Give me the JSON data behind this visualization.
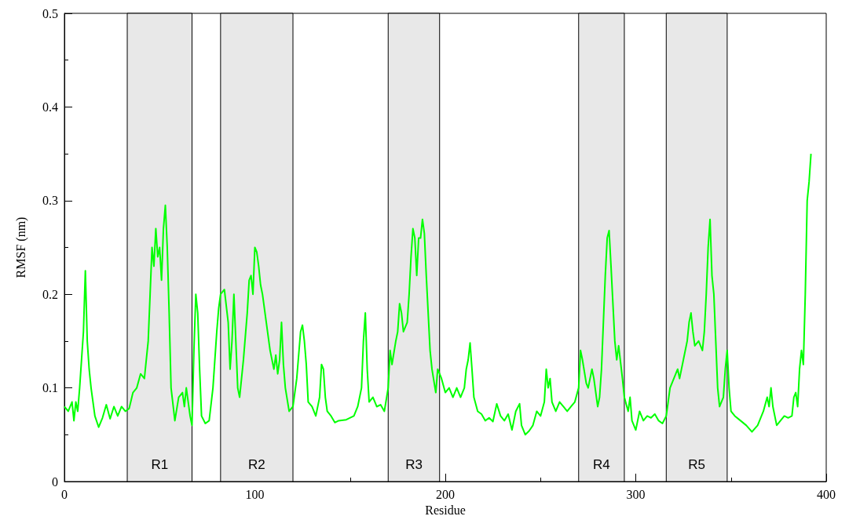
{
  "chart_data": {
    "type": "line",
    "xlabel": "Residue",
    "ylabel": "RMSF (nm)",
    "xlim": [
      0,
      400
    ],
    "xticks": [
      0,
      100,
      200,
      300,
      400
    ],
    "ylim": [
      0,
      0.5
    ],
    "yticks": [
      0,
      0.1,
      0.2,
      0.3,
      0.4,
      0.5
    ],
    "marker": "none",
    "line_style": "solid",
    "bands": [
      {
        "axis": "x",
        "from": 33,
        "to": 67,
        "label": "R1",
        "color": "#e8e8e8"
      },
      {
        "axis": "x",
        "from": 82,
        "to": 120,
        "label": "R2",
        "color": "#e8e8e8"
      },
      {
        "axis": "x",
        "from": 170,
        "to": 197,
        "label": "R3",
        "color": "#e8e8e8"
      },
      {
        "axis": "x",
        "from": 270,
        "to": 294,
        "label": "R4",
        "color": "#e8e8e8"
      },
      {
        "axis": "x",
        "from": 316,
        "to": 348,
        "label": "R5",
        "color": "#e8e8e8"
      }
    ],
    "series": [
      {
        "color": "#00ff00",
        "x": [
          0,
          2,
          4,
          5,
          6,
          7,
          8,
          9,
          10,
          11,
          12,
          13,
          14,
          16,
          18,
          20,
          22,
          24,
          26,
          28,
          30,
          32,
          34,
          36,
          38,
          40,
          42,
          44,
          45,
          46,
          47,
          48,
          49,
          50,
          51,
          52,
          53,
          54,
          55,
          56,
          58,
          60,
          62,
          63,
          64,
          65,
          66,
          67,
          68,
          69,
          70,
          71,
          72,
          74,
          76,
          78,
          80,
          81,
          82,
          84,
          86,
          87,
          88,
          89,
          90,
          91,
          92,
          94,
          96,
          97,
          98,
          99,
          100,
          101,
          102,
          103,
          104,
          106,
          108,
          110,
          111,
          112,
          113,
          114,
          115,
          116,
          118,
          120,
          122,
          124,
          125,
          126,
          127,
          128,
          130,
          132,
          134,
          135,
          136,
          137,
          138,
          140,
          142,
          144,
          148,
          152,
          154,
          156,
          157,
          158,
          159,
          160,
          162,
          164,
          166,
          168,
          170,
          171,
          172,
          174,
          175,
          176,
          177,
          178,
          180,
          181,
          182,
          183,
          184,
          185,
          186,
          187,
          188,
          189,
          190,
          191,
          192,
          193,
          195,
          196,
          198,
          200,
          202,
          204,
          206,
          208,
          210,
          211,
          212,
          213,
          214,
          215,
          217,
          219,
          221,
          223,
          225,
          227,
          229,
          231,
          233,
          235,
          237,
          239,
          240,
          242,
          244,
          246,
          248,
          250,
          252,
          253,
          254,
          255,
          256,
          258,
          260,
          262,
          264,
          266,
          268,
          270,
          271,
          272,
          274,
          275,
          277,
          278,
          280,
          281,
          282,
          283,
          284,
          285,
          286,
          287,
          288,
          289,
          290,
          291,
          293,
          294,
          296,
          297,
          298,
          300,
          302,
          304,
          306,
          308,
          310,
          312,
          314,
          316,
          317,
          318,
          320,
          322,
          323,
          325,
          327,
          328,
          329,
          330,
          331,
          333,
          335,
          336,
          337,
          338,
          339,
          340,
          341,
          342,
          343,
          344,
          346,
          347,
          348,
          349,
          350,
          352,
          355,
          358,
          361,
          364,
          367,
          369,
          370,
          371,
          372,
          374,
          376,
          378,
          380,
          382,
          383,
          384,
          385,
          386,
          387,
          388,
          389,
          390,
          391,
          392
        ],
        "values": [
          0.08,
          0.075,
          0.085,
          0.065,
          0.085,
          0.075,
          0.1,
          0.13,
          0.16,
          0.225,
          0.15,
          0.12,
          0.1,
          0.07,
          0.058,
          0.068,
          0.082,
          0.067,
          0.08,
          0.07,
          0.08,
          0.075,
          0.078,
          0.095,
          0.1,
          0.115,
          0.11,
          0.15,
          0.2,
          0.25,
          0.23,
          0.27,
          0.24,
          0.25,
          0.215,
          0.27,
          0.295,
          0.25,
          0.18,
          0.1,
          0.065,
          0.09,
          0.095,
          0.08,
          0.1,
          0.085,
          0.07,
          0.06,
          0.14,
          0.2,
          0.18,
          0.12,
          0.07,
          0.062,
          0.065,
          0.1,
          0.16,
          0.185,
          0.2,
          0.205,
          0.17,
          0.12,
          0.15,
          0.2,
          0.15,
          0.1,
          0.09,
          0.13,
          0.18,
          0.215,
          0.22,
          0.2,
          0.25,
          0.245,
          0.23,
          0.21,
          0.2,
          0.17,
          0.14,
          0.12,
          0.135,
          0.115,
          0.13,
          0.17,
          0.125,
          0.1,
          0.075,
          0.08,
          0.11,
          0.16,
          0.167,
          0.15,
          0.125,
          0.085,
          0.08,
          0.07,
          0.09,
          0.125,
          0.12,
          0.09,
          0.075,
          0.07,
          0.063,
          0.065,
          0.066,
          0.07,
          0.08,
          0.1,
          0.15,
          0.18,
          0.12,
          0.085,
          0.09,
          0.08,
          0.082,
          0.075,
          0.1,
          0.14,
          0.125,
          0.15,
          0.16,
          0.19,
          0.18,
          0.16,
          0.17,
          0.2,
          0.24,
          0.27,
          0.26,
          0.22,
          0.26,
          0.26,
          0.28,
          0.265,
          0.22,
          0.18,
          0.14,
          0.12,
          0.095,
          0.12,
          0.11,
          0.095,
          0.1,
          0.09,
          0.1,
          0.09,
          0.1,
          0.12,
          0.13,
          0.148,
          0.12,
          0.09,
          0.075,
          0.072,
          0.065,
          0.068,
          0.064,
          0.083,
          0.07,
          0.065,
          0.072,
          0.055,
          0.075,
          0.083,
          0.06,
          0.05,
          0.054,
          0.06,
          0.075,
          0.07,
          0.085,
          0.12,
          0.1,
          0.11,
          0.085,
          0.075,
          0.085,
          0.08,
          0.075,
          0.08,
          0.085,
          0.1,
          0.14,
          0.13,
          0.105,
          0.1,
          0.12,
          0.11,
          0.08,
          0.09,
          0.12,
          0.17,
          0.22,
          0.26,
          0.268,
          0.23,
          0.19,
          0.15,
          0.13,
          0.145,
          0.11,
          0.09,
          0.075,
          0.09,
          0.065,
          0.055,
          0.075,
          0.065,
          0.07,
          0.068,
          0.072,
          0.065,
          0.062,
          0.07,
          0.085,
          0.1,
          0.11,
          0.12,
          0.11,
          0.13,
          0.15,
          0.17,
          0.18,
          0.16,
          0.145,
          0.15,
          0.14,
          0.16,
          0.2,
          0.25,
          0.28,
          0.22,
          0.2,
          0.15,
          0.1,
          0.08,
          0.09,
          0.12,
          0.14,
          0.1,
          0.075,
          0.07,
          0.065,
          0.06,
          0.053,
          0.06,
          0.075,
          0.09,
          0.08,
          0.1,
          0.08,
          0.06,
          0.065,
          0.07,
          0.068,
          0.07,
          0.09,
          0.095,
          0.08,
          0.12,
          0.14,
          0.125,
          0.2,
          0.3,
          0.32,
          0.35
        ]
      }
    ]
  }
}
